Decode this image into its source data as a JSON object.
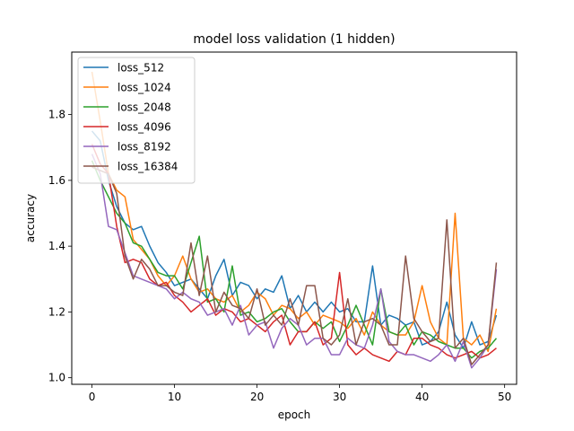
{
  "chart_data": {
    "type": "line",
    "title": "model loss validation  (1 hidden)",
    "xlabel": "epoch",
    "ylabel": "accuracy",
    "xlim": [
      -2.45,
      51.45
    ],
    "ylim": [
      0.98,
      1.99
    ],
    "xticks": [
      0,
      10,
      20,
      30,
      40,
      50
    ],
    "yticks": [
      1.0,
      1.2,
      1.4,
      1.6,
      1.8
    ],
    "ytick_labels": [
      "1.0",
      "1.2",
      "1.4",
      "1.6",
      "1.8"
    ],
    "grid": false,
    "legend_position": "top-left",
    "x": [
      0,
      1,
      2,
      3,
      4,
      5,
      6,
      7,
      8,
      9,
      10,
      11,
      12,
      13,
      14,
      15,
      16,
      17,
      18,
      19,
      20,
      21,
      22,
      23,
      24,
      25,
      26,
      27,
      28,
      29,
      30,
      31,
      32,
      33,
      34,
      35,
      36,
      37,
      38,
      39,
      40,
      41,
      42,
      43,
      44,
      45,
      46,
      47,
      48,
      49
    ],
    "series": [
      {
        "name": "loss_512",
        "color": "#1f77b4",
        "values": [
          1.75,
          1.72,
          1.6,
          1.52,
          1.47,
          1.45,
          1.46,
          1.4,
          1.35,
          1.32,
          1.28,
          1.29,
          1.3,
          1.27,
          1.24,
          1.31,
          1.36,
          1.25,
          1.29,
          1.28,
          1.24,
          1.27,
          1.26,
          1.31,
          1.21,
          1.25,
          1.2,
          1.23,
          1.2,
          1.23,
          1.2,
          1.21,
          1.17,
          1.17,
          1.34,
          1.16,
          1.19,
          1.18,
          1.16,
          1.17,
          1.1,
          1.11,
          1.14,
          1.23,
          1.13,
          1.09,
          1.17,
          1.1,
          1.11,
          1.19
        ]
      },
      {
        "name": "loss_1024",
        "color": "#ff7f0e",
        "values": [
          1.93,
          1.78,
          1.62,
          1.57,
          1.55,
          1.42,
          1.39,
          1.36,
          1.31,
          1.28,
          1.31,
          1.37,
          1.3,
          1.26,
          1.27,
          1.24,
          1.23,
          1.25,
          1.2,
          1.22,
          1.26,
          1.24,
          1.19,
          1.22,
          1.21,
          1.18,
          1.2,
          1.16,
          1.19,
          1.18,
          1.17,
          1.15,
          1.18,
          1.13,
          1.2,
          1.16,
          1.14,
          1.13,
          1.13,
          1.17,
          1.28,
          1.17,
          1.12,
          1.1,
          1.5,
          1.12,
          1.1,
          1.13,
          1.08,
          1.21
        ]
      },
      {
        "name": "loss_2048",
        "color": "#2ca02c",
        "values": [
          1.66,
          1.6,
          1.55,
          1.5,
          1.47,
          1.41,
          1.4,
          1.36,
          1.32,
          1.31,
          1.31,
          1.27,
          1.35,
          1.43,
          1.23,
          1.24,
          1.2,
          1.34,
          1.19,
          1.2,
          1.17,
          1.18,
          1.2,
          1.21,
          1.17,
          1.14,
          1.14,
          1.17,
          1.15,
          1.17,
          1.11,
          1.16,
          1.22,
          1.16,
          1.1,
          1.27,
          1.14,
          1.13,
          1.16,
          1.1,
          1.14,
          1.13,
          1.11,
          1.1,
          1.09,
          1.09,
          1.06,
          1.08,
          1.09,
          1.12
        ]
      },
      {
        "name": "loss_4096",
        "color": "#d62728",
        "values": [
          1.71,
          1.65,
          1.62,
          1.46,
          1.35,
          1.36,
          1.35,
          1.3,
          1.28,
          1.29,
          1.25,
          1.23,
          1.2,
          1.22,
          1.24,
          1.19,
          1.21,
          1.2,
          1.17,
          1.18,
          1.16,
          1.14,
          1.17,
          1.19,
          1.1,
          1.14,
          1.14,
          1.17,
          1.1,
          1.12,
          1.32,
          1.1,
          1.07,
          1.09,
          1.07,
          1.06,
          1.05,
          1.08,
          1.07,
          1.12,
          1.12,
          1.1,
          1.09,
          1.07,
          1.06,
          1.07,
          1.08,
          1.06,
          1.07,
          1.09
        ]
      },
      {
        "name": "loss_8192",
        "color": "#9467bd",
        "values": [
          1.68,
          1.62,
          1.46,
          1.45,
          1.38,
          1.31,
          1.3,
          1.29,
          1.28,
          1.27,
          1.24,
          1.26,
          1.24,
          1.23,
          1.19,
          1.2,
          1.21,
          1.16,
          1.22,
          1.13,
          1.16,
          1.17,
          1.09,
          1.15,
          1.18,
          1.16,
          1.1,
          1.12,
          1.12,
          1.07,
          1.07,
          1.12,
          1.1,
          1.09,
          1.16,
          1.27,
          1.11,
          1.08,
          1.07,
          1.07,
          1.06,
          1.05,
          1.07,
          1.1,
          1.05,
          1.11,
          1.03,
          1.06,
          1.1,
          1.33
        ]
      },
      {
        "name": "loss_16384",
        "color": "#8c564b",
        "values": [
          1.64,
          1.63,
          1.62,
          1.56,
          1.37,
          1.3,
          1.36,
          1.33,
          1.28,
          1.28,
          1.26,
          1.25,
          1.41,
          1.25,
          1.37,
          1.2,
          1.26,
          1.22,
          1.21,
          1.18,
          1.27,
          1.16,
          1.19,
          1.16,
          1.24,
          1.16,
          1.28,
          1.28,
          1.12,
          1.1,
          1.13,
          1.24,
          1.1,
          1.17,
          1.18,
          1.16,
          1.1,
          1.1,
          1.37,
          1.18,
          1.14,
          1.11,
          1.12,
          1.48,
          1.09,
          1.12,
          1.04,
          1.07,
          1.1,
          1.35
        ]
      }
    ]
  }
}
